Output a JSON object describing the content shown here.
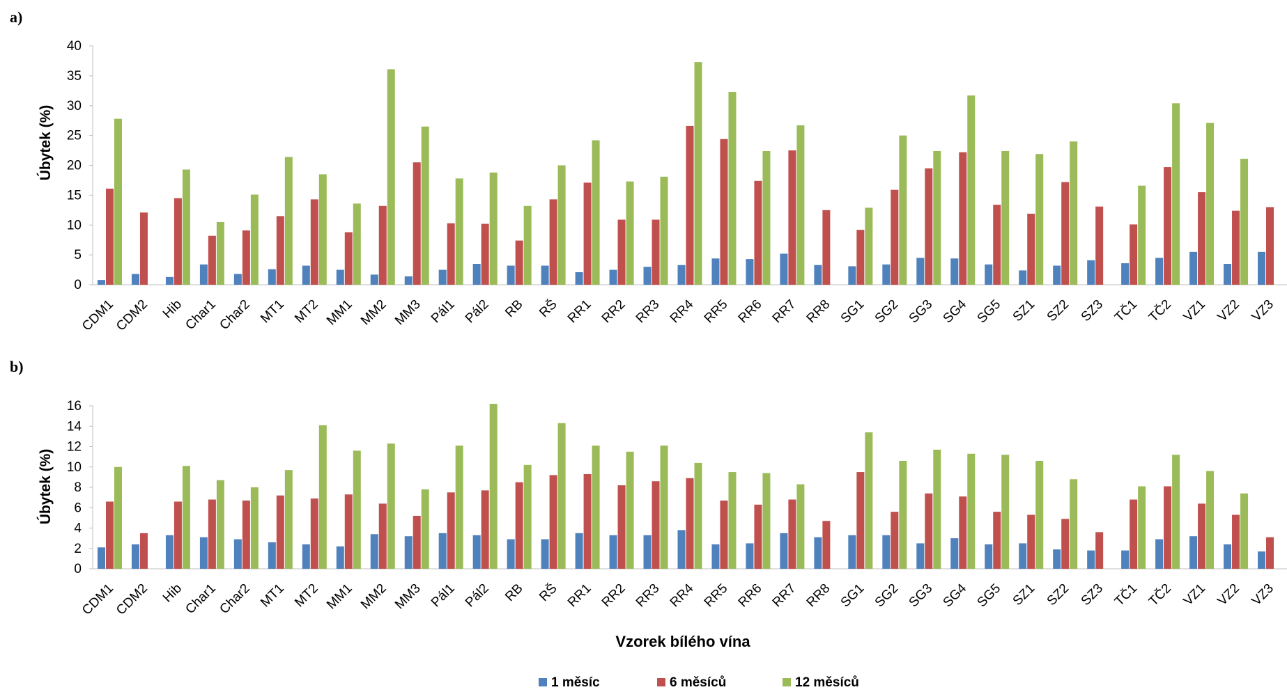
{
  "chart_data": [
    {
      "panel": "a)",
      "type": "bar",
      "ylabel": "Úbytek (%)",
      "ylim": [
        0,
        40
      ],
      "yticks": [
        0,
        5,
        10,
        15,
        20,
        25,
        30,
        35,
        40
      ],
      "grid": false,
      "categories": [
        "CDM1",
        "CDM2",
        "Hib",
        "Char1",
        "Char2",
        "MT1",
        "MT2",
        "MM1",
        "MM2",
        "MM3",
        "Pál1",
        "Pál2",
        "RB",
        "RŠ",
        "RR1",
        "RR2",
        "RR3",
        "RR4",
        "RR5",
        "RR6",
        "RR7",
        "RR8",
        "SG1",
        "SG2",
        "SG3",
        "SG4",
        "SG5",
        "SZ1",
        "SZ2",
        "SZ3",
        "TČ1",
        "TČ2",
        "VZ1",
        "VZ2",
        "VZ3"
      ],
      "series": [
        {
          "name": "1 měsíc",
          "color": "#4f81bd",
          "values": [
            0.8,
            1.8,
            1.3,
            3.4,
            1.8,
            2.6,
            3.2,
            2.5,
            1.7,
            1.4,
            2.5,
            3.5,
            3.2,
            3.2,
            2.1,
            2.5,
            3.0,
            3.3,
            4.4,
            4.3,
            5.2,
            3.3,
            3.1,
            3.4,
            4.5,
            4.4,
            3.4,
            2.4,
            3.2,
            4.1,
            3.6,
            4.5,
            5.5,
            3.5,
            5.5
          ]
        },
        {
          "name": "6 měsíců",
          "color": "#c0504d",
          "values": [
            16.1,
            12.1,
            14.5,
            8.2,
            9.1,
            11.5,
            14.3,
            8.8,
            13.2,
            20.5,
            10.3,
            10.2,
            7.4,
            14.3,
            17.1,
            10.9,
            10.9,
            26.6,
            24.4,
            17.4,
            22.5,
            12.5,
            9.2,
            15.9,
            19.5,
            22.2,
            13.4,
            11.9,
            17.2,
            13.1,
            10.1,
            19.7,
            15.5,
            12.4,
            13.0
          ]
        },
        {
          "name": "12 měsíců",
          "color": "#9bbb59",
          "values": [
            27.8,
            null,
            19.3,
            10.5,
            15.1,
            21.4,
            18.5,
            13.6,
            36.1,
            26.5,
            17.8,
            18.8,
            13.2,
            20.0,
            24.2,
            17.3,
            18.1,
            37.3,
            32.3,
            22.4,
            26.7,
            null,
            12.9,
            25.0,
            22.4,
            31.7,
            22.4,
            21.9,
            24.0,
            null,
            16.6,
            30.4,
            27.1,
            21.1,
            null
          ]
        }
      ]
    },
    {
      "panel": "b)",
      "type": "bar",
      "ylabel": "Úbytek (%)",
      "xlabel": "Vzorek bílého vína",
      "ylim": [
        0,
        16
      ],
      "yticks": [
        0,
        2,
        4,
        6,
        8,
        10,
        12,
        14,
        16
      ],
      "grid": false,
      "categories": [
        "CDM1",
        "CDM2",
        "Hib",
        "Char1",
        "Char2",
        "MT1",
        "MT2",
        "MM1",
        "MM2",
        "MM3",
        "Pál1",
        "Pál2",
        "RB",
        "RŠ",
        "RR1",
        "RR2",
        "RR3",
        "RR4",
        "RR5",
        "RR6",
        "RR7",
        "RR8",
        "SG1",
        "SG2",
        "SG3",
        "SG4",
        "SG5",
        "SZ1",
        "SZ2",
        "SZ3",
        "TČ1",
        "TČ2",
        "VZ1",
        "VZ2",
        "VZ3"
      ],
      "series": [
        {
          "name": "1 měsíc",
          "color": "#4f81bd",
          "values": [
            2.1,
            2.4,
            3.3,
            3.1,
            2.9,
            2.6,
            2.4,
            2.2,
            3.4,
            3.2,
            3.5,
            3.3,
            2.9,
            2.9,
            3.5,
            3.3,
            3.3,
            3.8,
            2.4,
            2.5,
            3.5,
            3.1,
            3.3,
            3.3,
            2.5,
            3.0,
            2.4,
            2.5,
            1.9,
            1.8,
            1.8,
            2.9,
            3.2,
            2.4,
            1.7
          ]
        },
        {
          "name": "6 měsíců",
          "color": "#c0504d",
          "values": [
            6.6,
            3.5,
            6.6,
            6.8,
            6.7,
            7.2,
            6.9,
            7.3,
            6.4,
            5.2,
            7.5,
            7.7,
            8.5,
            9.2,
            9.3,
            8.2,
            8.6,
            8.9,
            6.7,
            6.3,
            6.8,
            4.7,
            9.5,
            5.6,
            7.4,
            7.1,
            5.6,
            5.3,
            4.9,
            3.6,
            6.8,
            8.1,
            6.4,
            5.3,
            3.1
          ]
        },
        {
          "name": "12 měsíců",
          "color": "#9bbb59",
          "values": [
            10.0,
            null,
            10.1,
            8.7,
            8.0,
            9.7,
            14.1,
            11.6,
            12.3,
            7.8,
            12.1,
            16.2,
            10.2,
            14.3,
            12.1,
            11.5,
            12.1,
            10.4,
            9.5,
            9.4,
            8.3,
            null,
            13.4,
            10.6,
            11.7,
            11.3,
            11.2,
            10.6,
            8.8,
            null,
            8.1,
            11.2,
            9.6,
            7.4,
            null
          ]
        }
      ]
    }
  ],
  "legend": [
    {
      "label": "1 měsíc",
      "color": "#4f81bd"
    },
    {
      "label": "6 měsíců",
      "color": "#c0504d"
    },
    {
      "label": "12 měsíců",
      "color": "#9bbb59"
    }
  ]
}
